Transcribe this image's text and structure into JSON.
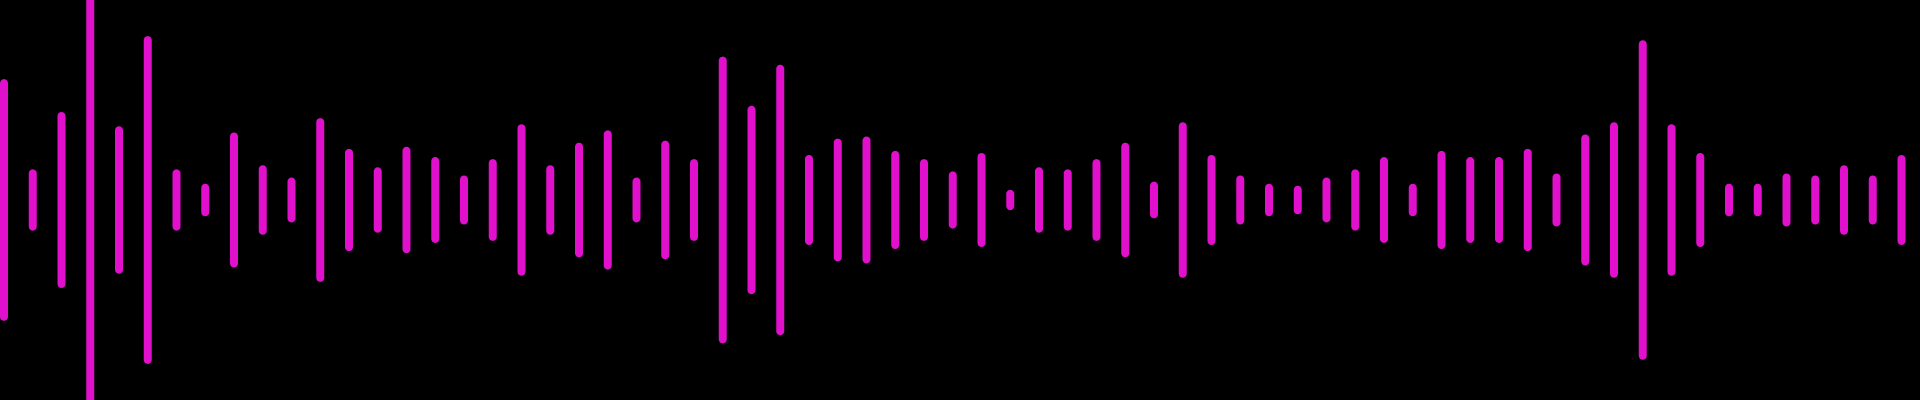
{
  "waveform": {
    "bar_color": "#e010cc",
    "background_color": "#000000",
    "amplitudes": [
      0.57,
      0.13,
      0.41,
      1.0,
      0.34,
      0.78,
      0.13,
      0.06,
      0.31,
      0.15,
      0.09,
      0.38,
      0.23,
      0.14,
      0.24,
      0.19,
      0.1,
      0.18,
      0.35,
      0.15,
      0.26,
      0.32,
      0.09,
      0.27,
      0.18,
      0.68,
      0.44,
      0.64,
      0.2,
      0.28,
      0.29,
      0.22,
      0.18,
      0.12,
      0.21,
      0.03,
      0.14,
      0.13,
      0.18,
      0.26,
      0.07,
      0.36,
      0.2,
      0.1,
      0.06,
      0.05,
      0.09,
      0.13,
      0.19,
      0.06,
      0.22,
      0.19,
      0.19,
      0.23,
      0.11,
      0.3,
      0.36,
      0.76,
      0.35,
      0.21,
      0.06,
      0.06,
      0.11,
      0.1,
      0.15,
      0.1,
      0.2,
      0.21
    ]
  }
}
